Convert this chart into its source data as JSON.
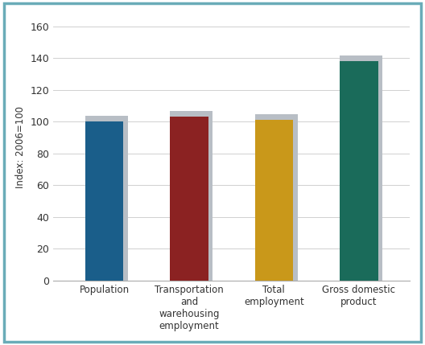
{
  "categories": [
    "Population",
    "Transportation\nand\nwarehousing\nemployment",
    "Total\nemployment",
    "Gross domestic\nproduct"
  ],
  "values": [
    100,
    103,
    101,
    138
  ],
  "bar_colors": [
    "#1a5e8a",
    "#8b2222",
    "#c9981a",
    "#1a6b5a"
  ],
  "bar_shadow_color": "#b8bec5",
  "ylabel": "Index: 2006=100",
  "ylim": [
    0,
    168
  ],
  "yticks": [
    0,
    20,
    40,
    60,
    80,
    100,
    120,
    140,
    160
  ],
  "background_color": "#ffffff",
  "border_color": "#6aacb8",
  "grid_color": "#d0d0d0",
  "label_fontsize": 8.5,
  "ylabel_fontsize": 8.5,
  "tick_fontsize": 9
}
